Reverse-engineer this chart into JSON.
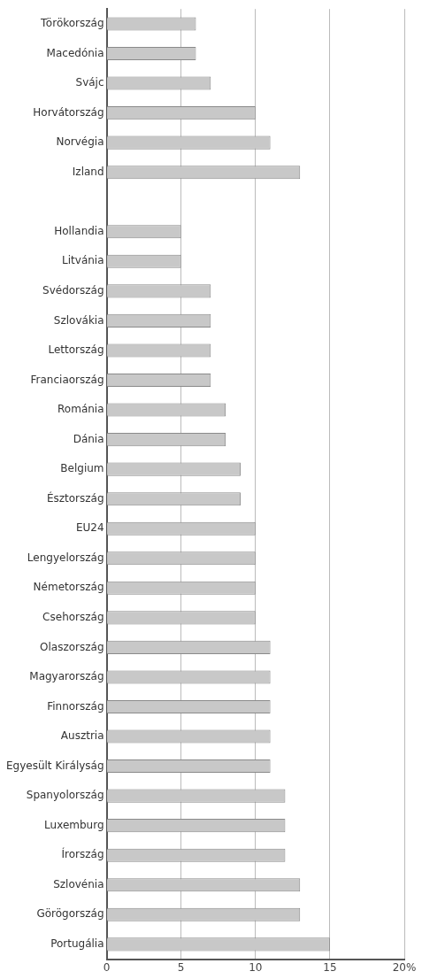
{
  "chart_data": {
    "type": "bar",
    "orientation": "horizontal",
    "categories": [
      "Törökország",
      "Macedónia",
      "Svájc",
      "Horvátország",
      "Norvégia",
      "Izland",
      null,
      "Hollandia",
      "Litvánia",
      "Svédország",
      "Szlovákia",
      "Lettország",
      "Franciaország",
      "Románia",
      "Dánia",
      "Belgium",
      "Észtország",
      "EU24",
      "Lengyelország",
      "Németország",
      "Csehország",
      "Olaszország",
      "Magyarország",
      "Finnország",
      "Ausztria",
      "Egyesült Királyság",
      "Spanyolország",
      "Luxemburg",
      "Írország",
      "Szlovénia",
      "Görögország",
      "Portugália"
    ],
    "values": [
      6,
      6,
      7,
      10,
      11,
      13,
      null,
      5,
      5,
      7,
      7,
      7,
      7,
      8,
      8,
      9,
      9,
      10,
      10,
      10,
      10,
      11,
      11,
      11,
      11,
      11,
      12,
      12,
      12,
      13,
      13,
      15
    ],
    "color": "#c8c8c8",
    "xlim": [
      0,
      20
    ],
    "xticks": [
      0,
      5,
      10,
      15,
      {
        "value": 20,
        "label": "20%"
      }
    ],
    "grid": "x"
  }
}
